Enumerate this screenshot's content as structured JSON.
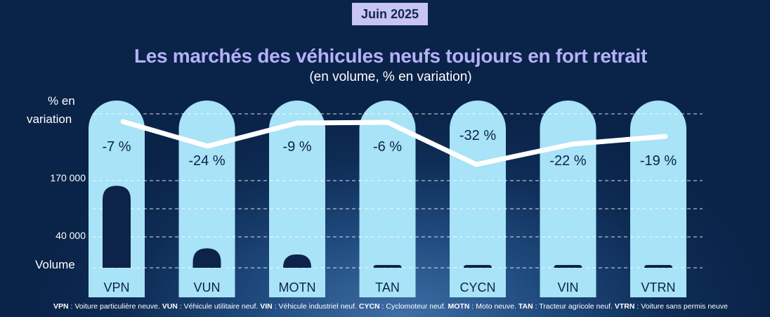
{
  "header": {
    "badge": "Juin 2025",
    "title": "Les marchés des véhicules neufs toujours en fort retrait",
    "subtitle": "(en volume, % en variation)"
  },
  "axis_labels": {
    "variation": [
      "% en",
      "variation"
    ],
    "ticks": [
      "170 000",
      "40 000"
    ],
    "volume": "Volume"
  },
  "legend": {
    "items": [
      {
        "code": "VPN",
        "text": " : Voiture particulière neuve. "
      },
      {
        "code": "VUN",
        "text": " : Véhicule utilitaire neuf. "
      },
      {
        "code": "VIN",
        "text": " : Véhicule industriel neuf. "
      },
      {
        "code": "CYCN",
        "text": " : Cyclomoteur neuf. "
      },
      {
        "code": "MOTN",
        "text": " : Moto neuve. "
      },
      {
        "code": "TAN",
        "text": " : Tracteur agricole neuf. "
      },
      {
        "code": "VTRN",
        "text": " : Voiture sans permis neuve"
      }
    ]
  },
  "colors": {
    "background": "#0e2c55",
    "pill": "#a8e3f7",
    "volume_bar": "#0e2349",
    "line": "#ffffff",
    "title": "#b4b2f6",
    "badge": "#c8c4f4"
  },
  "chart_data": {
    "type": "bar",
    "categories": [
      "VPN",
      "VUN",
      "MOTN",
      "TAN",
      "CYCN",
      "VIN",
      "VTRN"
    ],
    "series": [
      {
        "values": [
          160000,
          38000,
          26000,
          3500,
          2000,
          2500,
          2000
        ]
      },
      {
        "values": [
          -7,
          -24,
          -9,
          -6,
          -32,
          -22,
          -19
        ]
      }
    ],
    "variation_labels": [
      "-7 %",
      "-24 %",
      "-9 %",
      "-6 %",
      "-32 %",
      "-22 %",
      "-19 %"
    ],
    "volume_ticks": [
      170000,
      40000
    ],
    "grid": true
  }
}
